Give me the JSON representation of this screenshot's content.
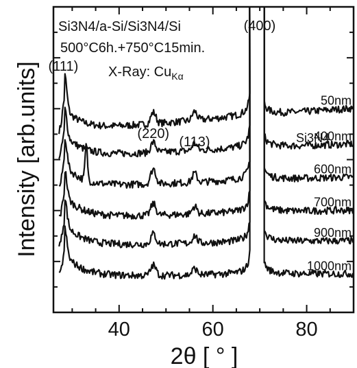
{
  "chart_data": {
    "type": "line",
    "title": "",
    "xlabel": "2θ [ ° ]",
    "ylabel": "Intensity [arb.units]",
    "xlim": [
      26,
      90
    ],
    "x_ticks": [
      40,
      60,
      80
    ],
    "y_ticks_labeled": false,
    "grid": false,
    "annotations": {
      "sample": "Si3N4/a-Si/Si3N4/Si",
      "anneal": "500°C6h.+750°C15min.",
      "xray_prefix": "X-Ray: Cu",
      "xray_sub": "Kα",
      "legend_header": "Si3N4"
    },
    "peaks": [
      {
        "label": "(111)",
        "x": 28.4
      },
      {
        "label": "(220)",
        "x": 47.3
      },
      {
        "label": "(113)",
        "x": 56.1
      },
      {
        "label": "(400)",
        "x": 69.1
      }
    ],
    "series": [
      {
        "name": "50nm",
        "baseline_right": 8.0,
        "baseline_left": 7.1,
        "peak111": 1.3,
        "peak220": 0.45,
        "peak113": 0.35,
        "extra33": 0
      },
      {
        "name": "400nm",
        "baseline_right": 6.6,
        "baseline_left": 6.1,
        "peak111": 1.0,
        "peak220": 0.4,
        "peak113": 0.3,
        "extra33": 0
      },
      {
        "name": "600nm",
        "baseline_right": 5.3,
        "baseline_left": 4.9,
        "peak111": 1.1,
        "peak220": 0.6,
        "peak113": 0.35,
        "extra33": 1.4
      },
      {
        "name": "700nm",
        "baseline_right": 4.0,
        "baseline_left": 3.7,
        "peak111": 1.0,
        "peak220": 0.45,
        "peak113": 0.3,
        "extra33": 0
      },
      {
        "name": "900nm",
        "baseline_right": 2.8,
        "baseline_left": 2.6,
        "peak111": 1.0,
        "peak220": 0.4,
        "peak113": 0.3,
        "extra33": 0
      },
      {
        "name": "1000nm",
        "baseline_right": 1.5,
        "baseline_left": 1.4,
        "peak111": 1.0,
        "peak220": 0.4,
        "peak113": 0.25,
        "extra33": 0
      }
    ],
    "ylim": [
      0,
      12
    ]
  }
}
